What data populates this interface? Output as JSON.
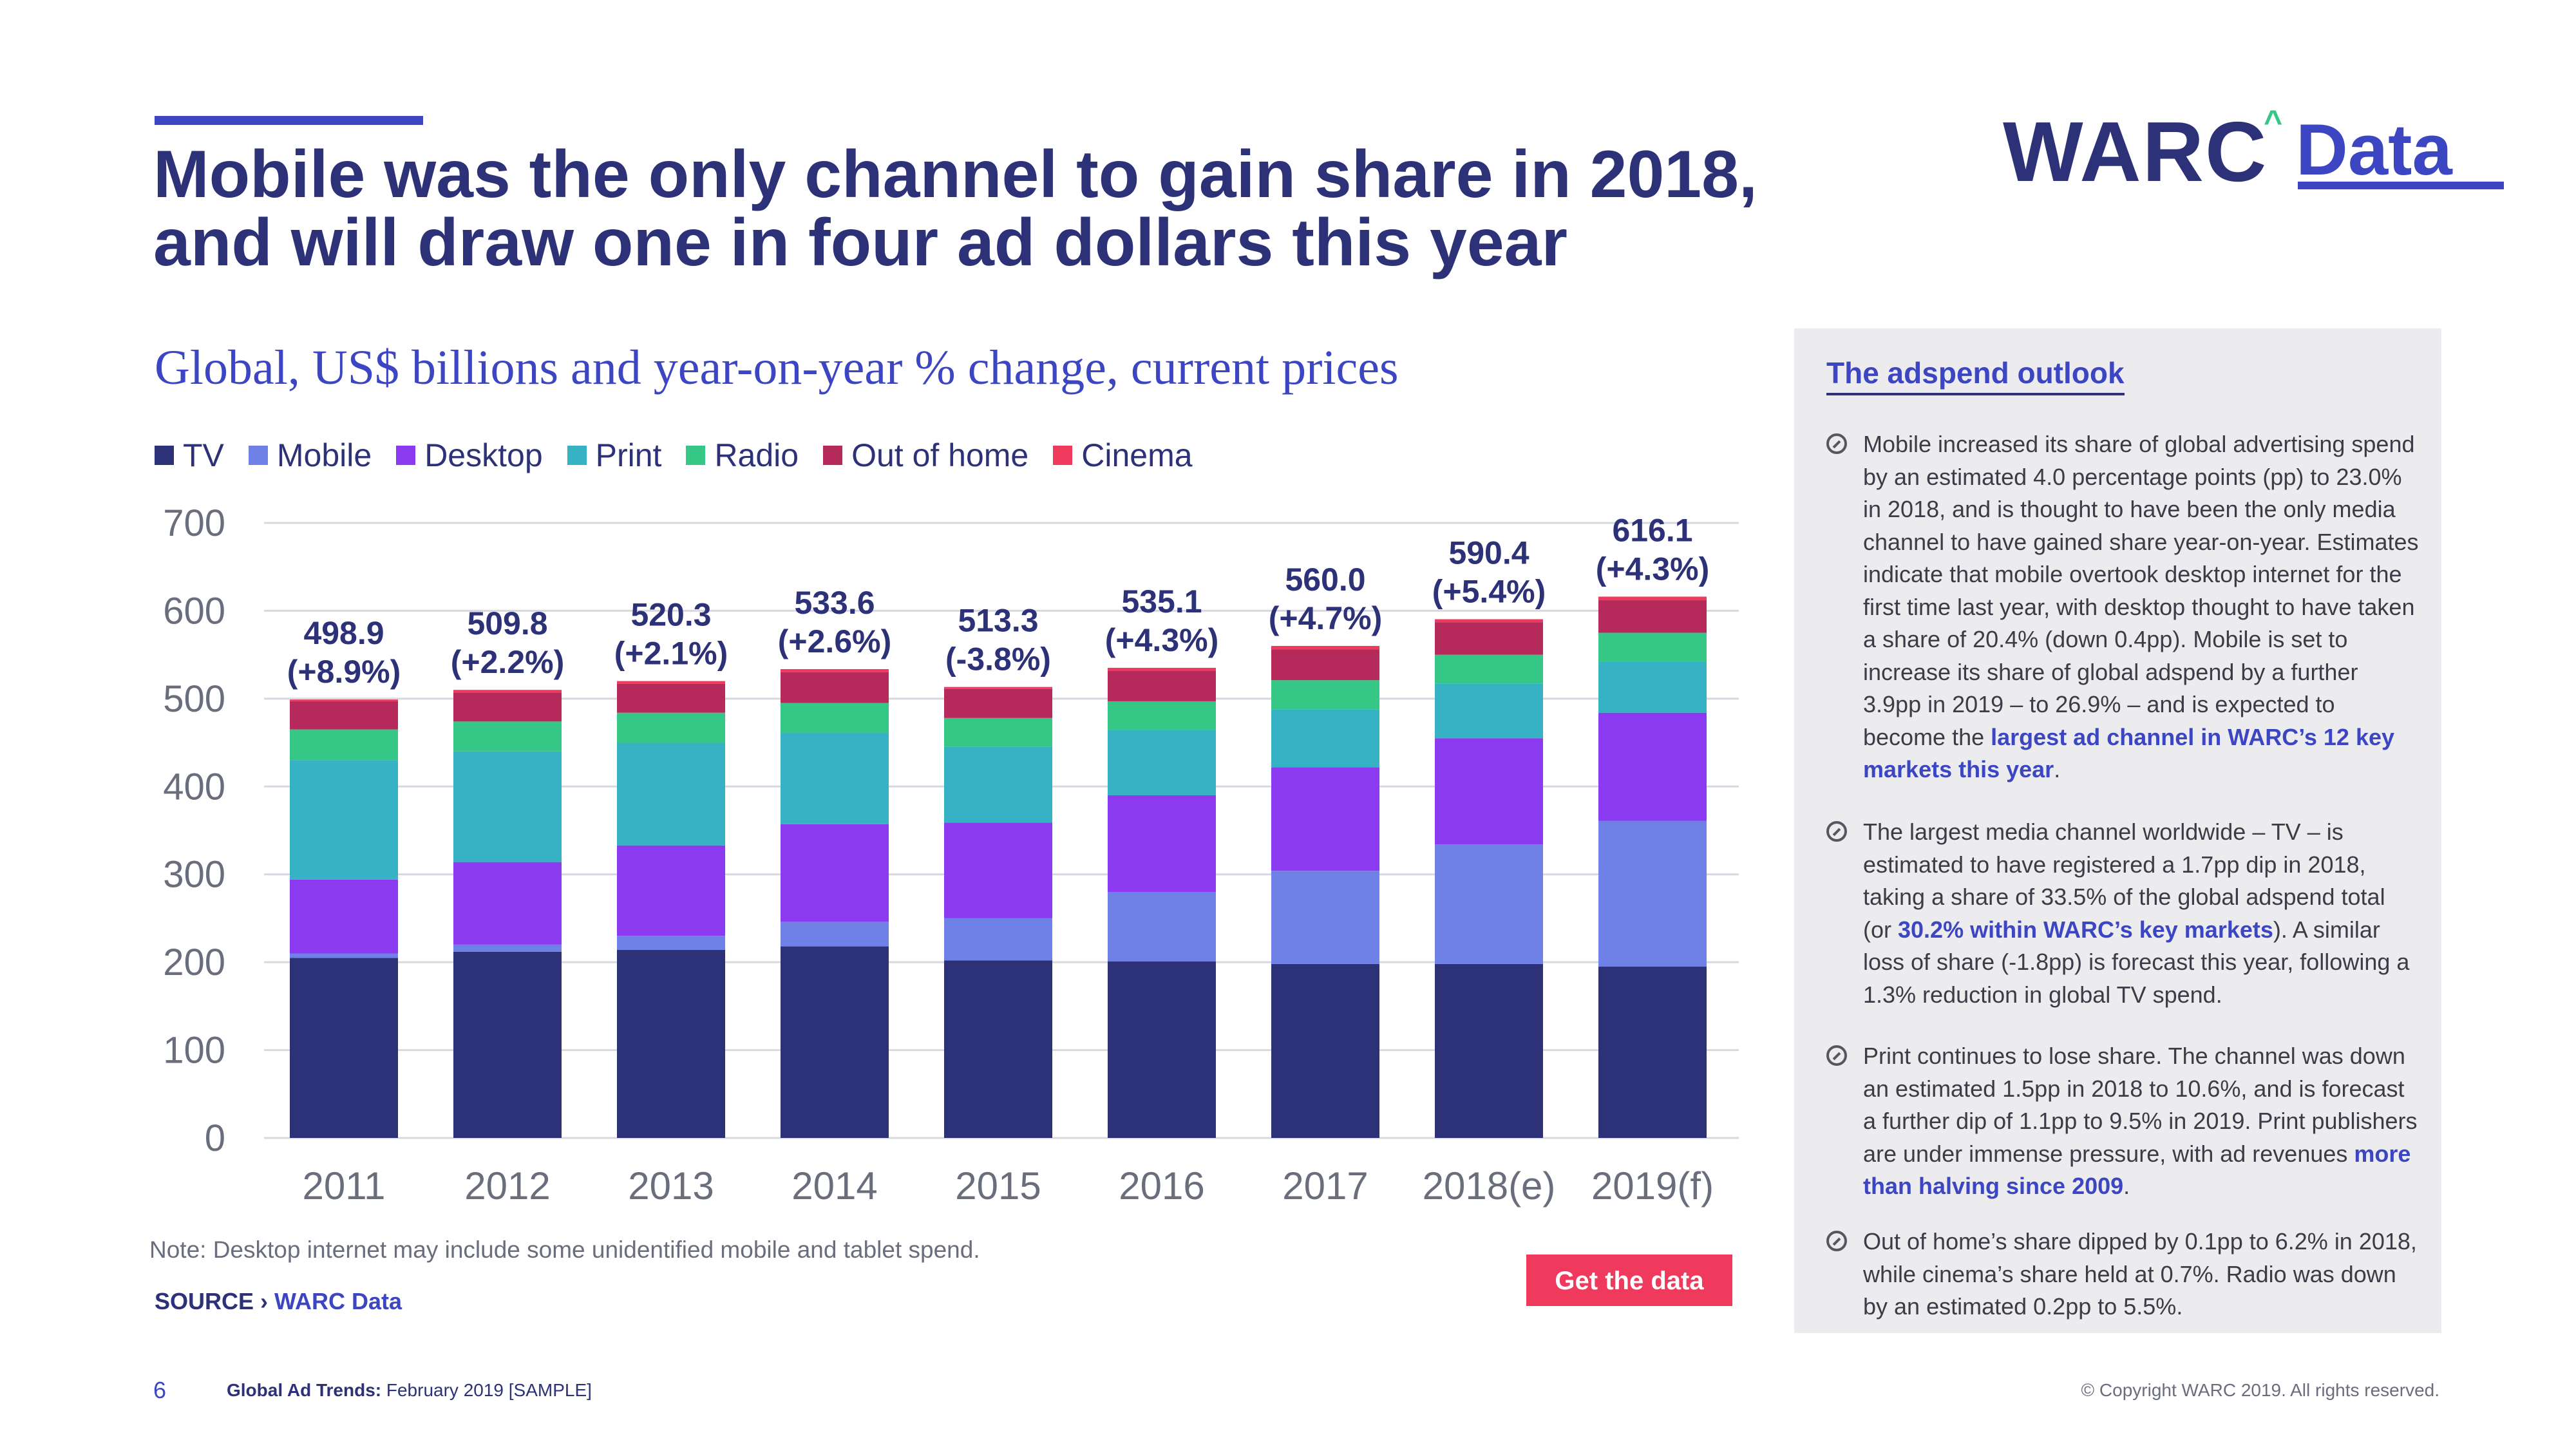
{
  "header": {
    "title_line1": "Mobile was the only channel to gain share in 2018,",
    "title_line2": "and will draw one in four ad dollars this year",
    "logo_main": "WARC",
    "logo_caret": "^",
    "logo_sub": "Data"
  },
  "colors": {
    "navy": "#2d3178",
    "accent": "#3d46c2",
    "cta": "#ef3a5d",
    "sidebar_bg": "#ececee"
  },
  "legend": [
    {
      "label": "TV",
      "color": "#2d3178"
    },
    {
      "label": "Mobile",
      "color": "#6f80e6"
    },
    {
      "label": "Desktop",
      "color": "#8b3af0"
    },
    {
      "label": "Print",
      "color": "#36b2c4"
    },
    {
      "label": "Radio",
      "color": "#35c785"
    },
    {
      "label": "Out of home",
      "color": "#b52a5a"
    },
    {
      "label": "Cinema",
      "color": "#ef3a5d"
    }
  ],
  "chart_data": {
    "type": "bar",
    "stacked": true,
    "title": "Global, US$ billions and year-on-year % change, current prices",
    "xlabel": "",
    "ylabel": "",
    "ylim": [
      0,
      700
    ],
    "yticks": [
      0,
      100,
      200,
      300,
      400,
      500,
      600,
      700
    ],
    "grid": true,
    "legend_position": "top-left",
    "categories": [
      "2011",
      "2012",
      "2013",
      "2014",
      "2015",
      "2016",
      "2017",
      "2018(e)",
      "2019(f)"
    ],
    "series": [
      {
        "name": "TV",
        "color": "#2d3178",
        "values": [
          205,
          212,
          214,
          218,
          202,
          201,
          198,
          198,
          195
        ]
      },
      {
        "name": "Mobile",
        "color": "#6f80e6",
        "values": [
          5,
          8,
          16,
          28,
          48,
          79,
          106,
          136,
          166
        ]
      },
      {
        "name": "Desktop",
        "color": "#8b3af0",
        "values": [
          84,
          94,
          103,
          111,
          109,
          110,
          118,
          121,
          123
        ]
      },
      {
        "name": "Print",
        "color": "#36b2c4",
        "values": [
          136,
          126,
          117,
          104,
          86,
          74,
          66,
          62,
          58
        ]
      },
      {
        "name": "Radio",
        "color": "#35c785",
        "values": [
          35,
          34,
          34,
          34,
          33,
          33,
          33,
          33,
          33
        ]
      },
      {
        "name": "Out of home",
        "color": "#b52a5a",
        "values": [
          32,
          33,
          33,
          35,
          33,
          35,
          35,
          37,
          37
        ]
      },
      {
        "name": "Cinema",
        "color": "#ef3a5d",
        "values": [
          2,
          3,
          3,
          3.6,
          2.3,
          3.1,
          4,
          3.4,
          4.1
        ]
      }
    ],
    "totals": [
      498.9,
      509.8,
      520.3,
      533.6,
      513.3,
      535.1,
      560.0,
      590.4,
      616.1
    ],
    "total_labels": [
      "498.9",
      "509.8",
      "520.3",
      "533.6",
      "513.3",
      "535.1",
      "560.0",
      "590.4",
      "616.1"
    ],
    "change_labels": [
      "(+8.9%)",
      "(+2.2%)",
      "(+2.1%)",
      "(+2.6%)",
      "(-3.8%)",
      "(+4.3%)",
      "(+4.7%)",
      "(+5.4%)",
      "(+4.3%)"
    ]
  },
  "note": "Note: Desktop internet may include some unidentified mobile and tablet spend.",
  "source": {
    "prefix": "SOURCE ›",
    "link": "WARC Data"
  },
  "cta_label": "Get the data",
  "sidebar": {
    "title": "The adspend outlook",
    "items": [
      {
        "parts": [
          {
            "text": "Mobile increased its share of global advertising spend by an estimated 4.0 percentage points (pp) to 23.0% in 2018, and is thought to have been the only media channel to have gained share year-on-year. Estimates indicate that mobile overtook desktop internet for the first time last year, with desktop thought to have taken a share of 20.4% (down 0.4pp). Mobile is set to increase its share of global adspend by a further 3.9pp in 2019 – to 26.9% – and is expected to become the ",
            "hl": false
          },
          {
            "text": "largest ad channel in WARC’s 12 key markets this year",
            "hl": true
          },
          {
            "text": ".",
            "hl": false
          }
        ]
      },
      {
        "parts": [
          {
            "text": "The largest media channel worldwide – TV – is estimated to have registered a 1.7pp dip in 2018, taking a share of 33.5% of the global adspend total (or ",
            "hl": false
          },
          {
            "text": "30.2% within WARC’s key markets",
            "hl": true
          },
          {
            "text": "). A similar loss of share (-1.8pp) is forecast this year, following a 1.3% reduction in global TV spend.",
            "hl": false
          }
        ]
      },
      {
        "parts": [
          {
            "text": "Print continues to lose share. The channel was down an estimated 1.5pp in 2018 to 10.6%, and is forecast a further dip of 1.1pp to 9.5% in 2019. Print publishers are under immense pressure, with ad revenues ",
            "hl": false
          },
          {
            "text": "more than halving since 2009",
            "hl": true
          },
          {
            "text": ".",
            "hl": false
          }
        ]
      },
      {
        "parts": [
          {
            "text": "Out of home’s share dipped by 0.1pp to 6.2% in 2018, while cinema’s share held at 0.7%. Radio was down by an estimated 0.2pp to 5.5%.",
            "hl": false
          }
        ]
      }
    ]
  },
  "footer": {
    "page": "6",
    "publication": "Global Ad Trends:",
    "edition": "February 2019 [SAMPLE]",
    "copyright": "© Copyright WARC 2019. All rights reserved."
  }
}
